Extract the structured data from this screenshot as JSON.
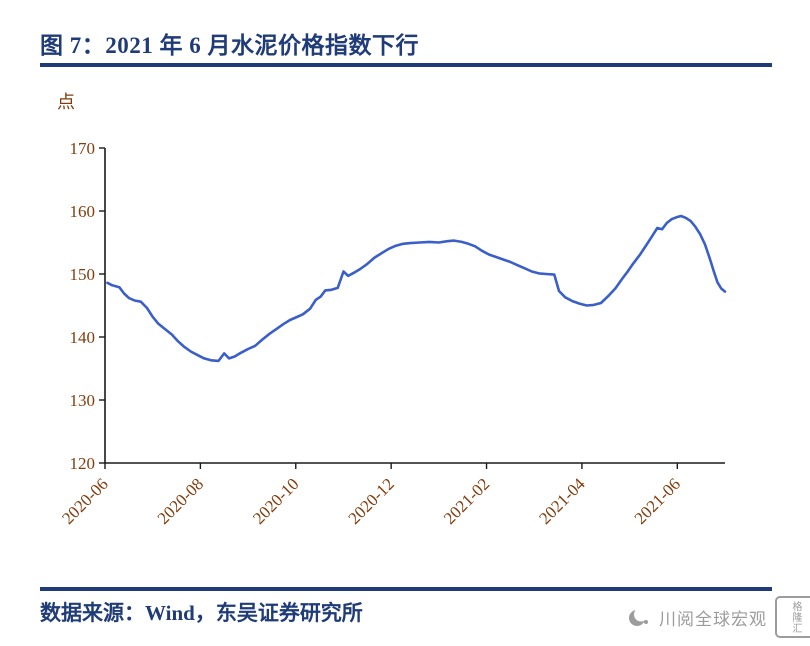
{
  "header": {
    "title": "图 7：2021 年 6 月水泥价格指数下行"
  },
  "footer": {
    "source": "数据来源：Wind，东吴证券研究所",
    "watermark": "川阅全球宏观",
    "logo": "格隆汇"
  },
  "colors": {
    "title": "#1F3C78",
    "rule": "#1F3C78",
    "axis_text": "#843C0C",
    "axis_line": "#1a1a1a",
    "line": "#3A5FC8",
    "watermark": "#9C9C9C"
  },
  "chart_data": {
    "type": "line",
    "title": "2021 年 6 月水泥价格指数下行",
    "unit_label": "点",
    "ylabel": "点",
    "ylim": [
      120,
      170
    ],
    "yticks": [
      170,
      160,
      150,
      140,
      130,
      120
    ],
    "xticks": [
      "2020-06",
      "2020-08",
      "2020-10",
      "2020-12",
      "2021-02",
      "2021-04",
      "2021-06"
    ],
    "x_domain_months": [
      0,
      13
    ],
    "grid": false,
    "legend": "none",
    "series": [
      {
        "name": "水泥价格指数",
        "color": "#3A5FC8",
        "points": [
          [
            0.05,
            148.6
          ],
          [
            0.15,
            148.2
          ],
          [
            0.3,
            147.9
          ],
          [
            0.4,
            146.9
          ],
          [
            0.5,
            146.2
          ],
          [
            0.62,
            145.8
          ],
          [
            0.75,
            145.6
          ],
          [
            0.88,
            144.6
          ],
          [
            1.0,
            143.2
          ],
          [
            1.12,
            142.1
          ],
          [
            1.25,
            141.3
          ],
          [
            1.4,
            140.4
          ],
          [
            1.52,
            139.4
          ],
          [
            1.65,
            138.5
          ],
          [
            1.8,
            137.7
          ],
          [
            1.95,
            137.1
          ],
          [
            2.08,
            136.6
          ],
          [
            2.22,
            136.3
          ],
          [
            2.38,
            136.2
          ],
          [
            2.5,
            137.4
          ],
          [
            2.6,
            136.6
          ],
          [
            2.72,
            136.9
          ],
          [
            2.85,
            137.5
          ],
          [
            3.0,
            138.1
          ],
          [
            3.15,
            138.6
          ],
          [
            3.3,
            139.6
          ],
          [
            3.45,
            140.5
          ],
          [
            3.6,
            141.3
          ],
          [
            3.75,
            142.1
          ],
          [
            3.88,
            142.7
          ],
          [
            4.0,
            143.1
          ],
          [
            4.15,
            143.6
          ],
          [
            4.3,
            144.5
          ],
          [
            4.42,
            145.9
          ],
          [
            4.52,
            146.4
          ],
          [
            4.62,
            147.4
          ],
          [
            4.75,
            147.5
          ],
          [
            4.88,
            147.8
          ],
          [
            5.0,
            150.4
          ],
          [
            5.1,
            149.7
          ],
          [
            5.22,
            150.2
          ],
          [
            5.35,
            150.8
          ],
          [
            5.5,
            151.6
          ],
          [
            5.65,
            152.6
          ],
          [
            5.8,
            153.3
          ],
          [
            5.95,
            154.0
          ],
          [
            6.1,
            154.5
          ],
          [
            6.25,
            154.8
          ],
          [
            6.4,
            154.9
          ],
          [
            6.6,
            155.0
          ],
          [
            6.8,
            155.1
          ],
          [
            7.0,
            155.0
          ],
          [
            7.18,
            155.2
          ],
          [
            7.32,
            155.3
          ],
          [
            7.48,
            155.1
          ],
          [
            7.62,
            154.8
          ],
          [
            7.76,
            154.4
          ],
          [
            7.9,
            153.7
          ],
          [
            8.05,
            153.1
          ],
          [
            8.2,
            152.7
          ],
          [
            8.35,
            152.3
          ],
          [
            8.5,
            151.9
          ],
          [
            8.65,
            151.4
          ],
          [
            8.8,
            150.9
          ],
          [
            8.95,
            150.4
          ],
          [
            9.1,
            150.1
          ],
          [
            9.25,
            150.0
          ],
          [
            9.42,
            149.9
          ],
          [
            9.52,
            147.3
          ],
          [
            9.65,
            146.3
          ],
          [
            9.8,
            145.7
          ],
          [
            9.95,
            145.3
          ],
          [
            10.1,
            145.0
          ],
          [
            10.25,
            145.1
          ],
          [
            10.4,
            145.4
          ],
          [
            10.55,
            146.5
          ],
          [
            10.7,
            147.7
          ],
          [
            10.85,
            149.3
          ],
          [
            10.97,
            150.5
          ],
          [
            11.08,
            151.7
          ],
          [
            11.22,
            153.1
          ],
          [
            11.36,
            154.7
          ],
          [
            11.48,
            156.1
          ],
          [
            11.58,
            157.3
          ],
          [
            11.68,
            157.1
          ],
          [
            11.78,
            158.1
          ],
          [
            11.88,
            158.7
          ],
          [
            11.98,
            159.0
          ],
          [
            12.08,
            159.2
          ],
          [
            12.18,
            158.9
          ],
          [
            12.28,
            158.4
          ],
          [
            12.38,
            157.5
          ],
          [
            12.48,
            156.3
          ],
          [
            12.58,
            154.7
          ],
          [
            12.68,
            152.5
          ],
          [
            12.76,
            150.5
          ],
          [
            12.84,
            148.7
          ],
          [
            12.92,
            147.7
          ],
          [
            13.0,
            147.2
          ]
        ]
      }
    ]
  }
}
